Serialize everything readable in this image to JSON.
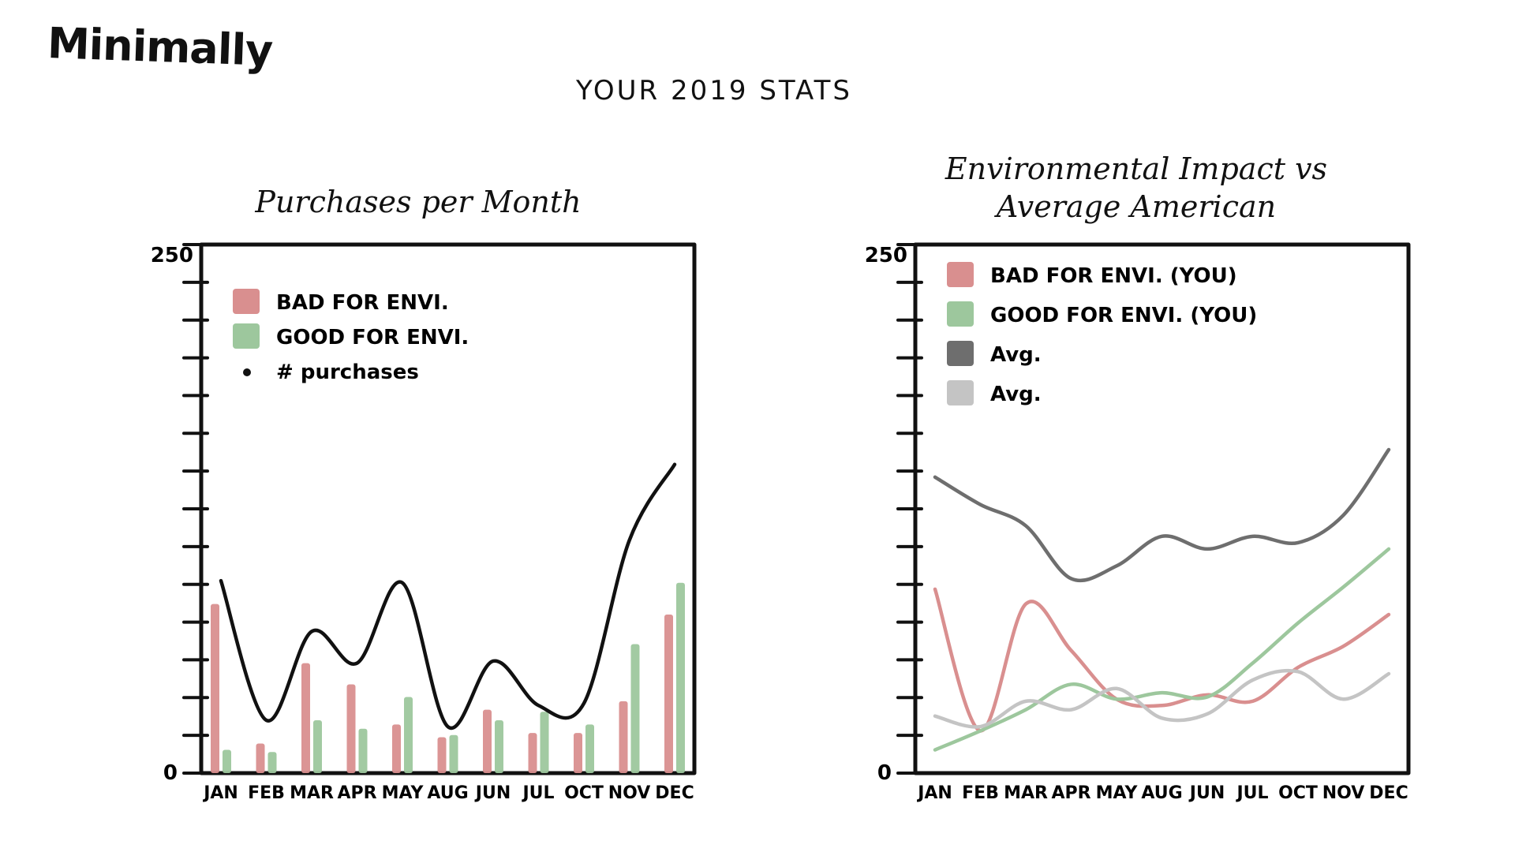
{
  "app_name": "Minimally",
  "page_title": "YOUR 2019 STATS",
  "colors": {
    "bad": "#d98f8f",
    "good": "#9dc79d",
    "line": "#111111",
    "avg_dark": "#6e6e6e",
    "avg_light": "#c4c4c4"
  },
  "chart_data": [
    {
      "type": "bar",
      "title": "Purchases per Month",
      "xlabel": "",
      "ylabel": "",
      "ylim": [
        0,
        250
      ],
      "y_tick_labels": [
        "0",
        "250"
      ],
      "categories": [
        "JAN",
        "FEB",
        "MAR",
        "APR",
        "MAY",
        "AUG",
        "JUN",
        "JUL",
        "OCT",
        "NOV",
        "DEC"
      ],
      "series": [
        {
          "name": "BAD FOR ENVI.",
          "kind": "bar",
          "color": "#d98f8f",
          "values": [
            80,
            14,
            52,
            42,
            23,
            17,
            30,
            19,
            19,
            34,
            75
          ]
        },
        {
          "name": "GOOD FOR ENVI.",
          "kind": "bar",
          "color": "#9dc79d",
          "values": [
            11,
            10,
            25,
            21,
            36,
            18,
            25,
            29,
            23,
            61,
            90
          ]
        },
        {
          "name": "# purchases",
          "kind": "line",
          "color": "#111111",
          "values": [
            91,
            25,
            67,
            52,
            90,
            22,
            53,
            32,
            33,
            110,
            146
          ]
        }
      ],
      "legend": "top-left",
      "grid": false
    },
    {
      "type": "line",
      "title": "Environmental Impact vs Average American",
      "xlabel": "",
      "ylabel": "",
      "ylim": [
        0,
        250
      ],
      "y_tick_labels": [
        "0",
        "250"
      ],
      "categories": [
        "JAN",
        "FEB",
        "MAR",
        "APR",
        "MAY",
        "AUG",
        "JUN",
        "JUL",
        "OCT",
        "NOV",
        "DEC"
      ],
      "series": [
        {
          "name": "BAD FOR ENVI. (YOU)",
          "color": "#d98f8f",
          "values": [
            87,
            20,
            80,
            58,
            35,
            32,
            37,
            34,
            50,
            60,
            75
          ]
        },
        {
          "name": "GOOD FOR ENVI. (YOU)",
          "color": "#9dc79d",
          "values": [
            11,
            20,
            30,
            42,
            35,
            38,
            36,
            52,
            71,
            88,
            106
          ]
        },
        {
          "name": "Avg.",
          "color": "#6e6e6e",
          "values": [
            140,
            127,
            117,
            92,
            98,
            112,
            106,
            112,
            109,
            122,
            153
          ]
        },
        {
          "name": "Avg.",
          "color": "#c4c4c4",
          "values": [
            27,
            22,
            34,
            30,
            40,
            26,
            28,
            44,
            48,
            35,
            47
          ]
        }
      ],
      "legend": "top-left",
      "grid": false
    }
  ]
}
